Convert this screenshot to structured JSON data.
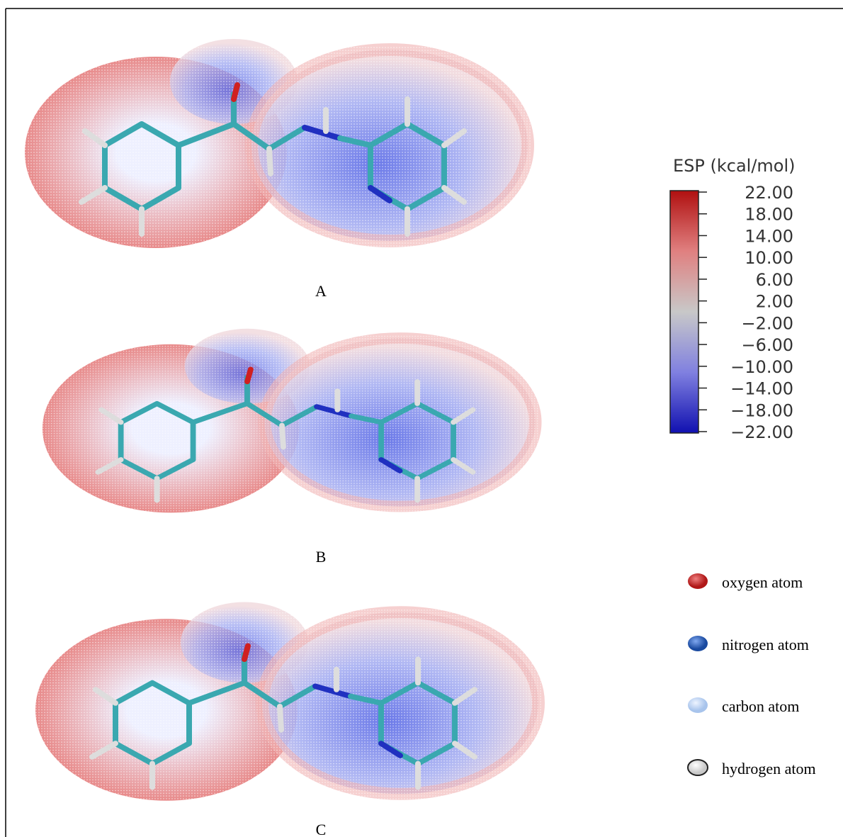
{
  "panels": [
    {
      "label": "A"
    },
    {
      "label": "B"
    },
    {
      "label": "C"
    }
  ],
  "colorbar": {
    "title": "ESP (kcal/mol)",
    "ticks": [
      "22.00",
      "18.00",
      "14.00",
      "10.00",
      "6.00",
      "2.00",
      "−2.00",
      "−6.00",
      "−10.00",
      "−14.00",
      "−18.00",
      "−22.00"
    ]
  },
  "legend": [
    {
      "label": "oxygen atom"
    },
    {
      "label": "nitrogen atom"
    },
    {
      "label": "carbon atom"
    },
    {
      "label": "hydrogen atom"
    }
  ]
}
